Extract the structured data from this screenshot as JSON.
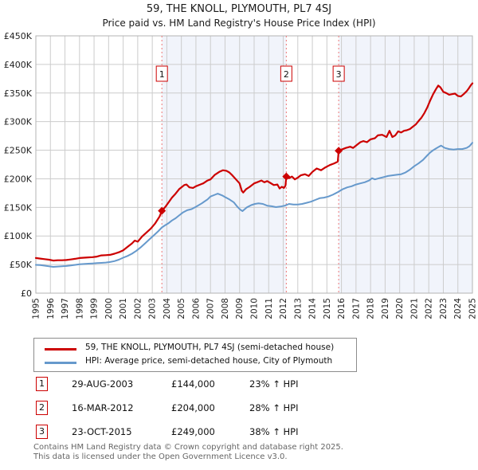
{
  "title": "59, THE KNOLL, PLYMOUTH, PL7 4SJ",
  "subtitle": "Price paid vs. HM Land Registry's House Price Index (HPI)",
  "chart_data": {
    "type": "line",
    "unit": "GBP_thousands",
    "x_range": [
      1995,
      2025
    ],
    "y_range": [
      0,
      450
    ],
    "grid": true,
    "region_fill": "#f1f4fb",
    "grid_color": "#cccccc",
    "border_color": "#b3b3b3",
    "sale_line_color": "#ee7777",
    "y_ticks": [
      {
        "value": 450,
        "label": "£450K"
      },
      {
        "value": 400,
        "label": "£400K"
      },
      {
        "value": 350,
        "label": "£350K"
      },
      {
        "value": 300,
        "label": "£300K"
      },
      {
        "value": 250,
        "label": "£250K"
      },
      {
        "value": 200,
        "label": "£200K"
      },
      {
        "value": 150,
        "label": "£150K"
      },
      {
        "value": 100,
        "label": "£100K"
      },
      {
        "value": 50,
        "label": "£50K"
      },
      {
        "value": 0,
        "label": "£0"
      }
    ],
    "x_ticks": [
      1995,
      1996,
      1997,
      1998,
      1999,
      2000,
      2001,
      2002,
      2003,
      2004,
      2005,
      2006,
      2007,
      2008,
      2009,
      2010,
      2011,
      2012,
      2013,
      2014,
      2015,
      2016,
      2017,
      2018,
      2019,
      2020,
      2021,
      2022,
      2023,
      2024,
      2025
    ],
    "shaded_regions": [
      [
        2003.66,
        2012.21
      ],
      [
        2015.81,
        2025
      ]
    ],
    "sales": [
      {
        "label": "1",
        "x": 2003.66,
        "price_k": 144
      },
      {
        "label": "2",
        "x": 2012.21,
        "price_k": 204
      },
      {
        "label": "3",
        "x": 2015.81,
        "price_k": 249
      }
    ],
    "series": [
      {
        "name": "59, THE KNOLL, PLYMOUTH, PL7 4SJ (semi-detached house)",
        "color": "#cc0000",
        "width": 2.2,
        "points": [
          [
            1995.0,
            61.5
          ],
          [
            1995.3,
            60.5
          ],
          [
            1995.6,
            59.5
          ],
          [
            1995.9,
            58.5
          ],
          [
            1996.2,
            57
          ],
          [
            1996.5,
            57.5
          ],
          [
            1996.8,
            57.5
          ],
          [
            1997.1,
            58
          ],
          [
            1997.4,
            59
          ],
          [
            1997.7,
            60
          ],
          [
            1998.0,
            61.5
          ],
          [
            1998.3,
            62
          ],
          [
            1998.6,
            62.5
          ],
          [
            1998.9,
            63
          ],
          [
            1999.2,
            64
          ],
          [
            1999.5,
            66
          ],
          [
            1999.8,
            66.5
          ],
          [
            2000.1,
            67
          ],
          [
            2000.4,
            69
          ],
          [
            2000.7,
            71.5
          ],
          [
            2001.0,
            75
          ],
          [
            2001.3,
            81
          ],
          [
            2001.6,
            87
          ],
          [
            2001.8,
            92
          ],
          [
            2002.0,
            90
          ],
          [
            2002.3,
            99
          ],
          [
            2002.6,
            106
          ],
          [
            2002.9,
            113
          ],
          [
            2003.2,
            122
          ],
          [
            2003.5,
            134
          ],
          [
            2003.66,
            144
          ],
          [
            2003.9,
            151
          ],
          [
            2004.1,
            158
          ],
          [
            2004.35,
            167
          ],
          [
            2004.6,
            174
          ],
          [
            2004.85,
            182
          ],
          [
            2005.05,
            186
          ],
          [
            2005.2,
            189
          ],
          [
            2005.35,
            190
          ],
          [
            2005.55,
            185
          ],
          [
            2005.8,
            184
          ],
          [
            2006.0,
            187
          ],
          [
            2006.3,
            190
          ],
          [
            2006.5,
            192
          ],
          [
            2006.8,
            197
          ],
          [
            2007.0,
            199
          ],
          [
            2007.3,
            207
          ],
          [
            2007.6,
            212
          ],
          [
            2007.85,
            215
          ],
          [
            2008.1,
            214
          ],
          [
            2008.3,
            211
          ],
          [
            2008.5,
            206
          ],
          [
            2008.75,
            199
          ],
          [
            2009.0,
            192
          ],
          [
            2009.15,
            179
          ],
          [
            2009.25,
            176
          ],
          [
            2009.45,
            182
          ],
          [
            2009.7,
            186
          ],
          [
            2010.0,
            192
          ],
          [
            2010.2,
            194
          ],
          [
            2010.5,
            197
          ],
          [
            2010.7,
            194
          ],
          [
            2010.9,
            196
          ],
          [
            2011.1,
            193
          ],
          [
            2011.35,
            189
          ],
          [
            2011.6,
            190
          ],
          [
            2011.75,
            183
          ],
          [
            2011.9,
            186
          ],
          [
            2012.05,
            184
          ],
          [
            2012.15,
            188
          ],
          [
            2012.21,
            204
          ],
          [
            2012.4,
            201
          ],
          [
            2012.6,
            204
          ],
          [
            2012.8,
            199
          ],
          [
            2013.0,
            202
          ],
          [
            2013.2,
            206
          ],
          [
            2013.5,
            208
          ],
          [
            2013.75,
            205
          ],
          [
            2014.0,
            212
          ],
          [
            2014.3,
            218
          ],
          [
            2014.6,
            215
          ],
          [
            2014.9,
            220
          ],
          [
            2015.2,
            224
          ],
          [
            2015.5,
            227
          ],
          [
            2015.75,
            230
          ],
          [
            2015.81,
            249
          ],
          [
            2016.0,
            251
          ],
          [
            2016.3,
            254
          ],
          [
            2016.6,
            256
          ],
          [
            2016.8,
            254
          ],
          [
            2017.0,
            258
          ],
          [
            2017.3,
            264
          ],
          [
            2017.5,
            266
          ],
          [
            2017.75,
            264
          ],
          [
            2018.0,
            269
          ],
          [
            2018.3,
            271
          ],
          [
            2018.5,
            276
          ],
          [
            2018.8,
            277
          ],
          [
            2019.1,
            273
          ],
          [
            2019.3,
            284
          ],
          [
            2019.5,
            273
          ],
          [
            2019.7,
            276
          ],
          [
            2019.9,
            283
          ],
          [
            2020.1,
            281
          ],
          [
            2020.3,
            284
          ],
          [
            2020.5,
            285
          ],
          [
            2020.7,
            287
          ],
          [
            2020.9,
            291
          ],
          [
            2021.1,
            295
          ],
          [
            2021.3,
            301
          ],
          [
            2021.5,
            307
          ],
          [
            2021.7,
            315
          ],
          [
            2021.9,
            325
          ],
          [
            2022.1,
            337
          ],
          [
            2022.3,
            348
          ],
          [
            2022.5,
            357
          ],
          [
            2022.65,
            363
          ],
          [
            2022.8,
            360
          ],
          [
            2023.0,
            352
          ],
          [
            2023.2,
            350
          ],
          [
            2023.4,
            347
          ],
          [
            2023.6,
            348
          ],
          [
            2023.8,
            349
          ],
          [
            2024.0,
            345
          ],
          [
            2024.2,
            344
          ],
          [
            2024.4,
            348
          ],
          [
            2024.6,
            353
          ],
          [
            2024.75,
            358
          ],
          [
            2024.9,
            364
          ],
          [
            2025.0,
            367
          ]
        ]
      },
      {
        "name": "HPI: Average price, semi-detached house, City of Plymouth",
        "color": "#6699cc",
        "width": 2,
        "points": [
          [
            1995.0,
            49.5
          ],
          [
            1995.3,
            49
          ],
          [
            1995.6,
            48
          ],
          [
            1995.9,
            47
          ],
          [
            1996.2,
            46
          ],
          [
            1996.5,
            46.5
          ],
          [
            1996.8,
            47
          ],
          [
            1997.1,
            47.5
          ],
          [
            1997.4,
            48.5
          ],
          [
            1997.7,
            49.5
          ],
          [
            1998.0,
            50.5
          ],
          [
            1998.3,
            51
          ],
          [
            1998.6,
            51.5
          ],
          [
            1998.9,
            52
          ],
          [
            1999.2,
            52.5
          ],
          [
            1999.5,
            53
          ],
          [
            1999.8,
            53.5
          ],
          [
            2000.1,
            54.5
          ],
          [
            2000.4,
            56
          ],
          [
            2000.7,
            58.5
          ],
          [
            2001.0,
            62
          ],
          [
            2001.3,
            65
          ],
          [
            2001.6,
            69
          ],
          [
            2001.9,
            74
          ],
          [
            2002.2,
            80
          ],
          [
            2002.5,
            87
          ],
          [
            2002.8,
            94
          ],
          [
            2003.1,
            101
          ],
          [
            2003.4,
            108
          ],
          [
            2003.66,
            115
          ],
          [
            2003.9,
            119
          ],
          [
            2004.1,
            122
          ],
          [
            2004.35,
            127
          ],
          [
            2004.6,
            131
          ],
          [
            2004.85,
            136
          ],
          [
            2005.1,
            141
          ],
          [
            2005.4,
            145
          ],
          [
            2005.7,
            147
          ],
          [
            2006.0,
            151
          ],
          [
            2006.4,
            157
          ],
          [
            2006.8,
            164
          ],
          [
            2007.0,
            169
          ],
          [
            2007.3,
            172
          ],
          [
            2007.5,
            174
          ],
          [
            2007.8,
            171
          ],
          [
            2008.0,
            168
          ],
          [
            2008.3,
            164
          ],
          [
            2008.6,
            159
          ],
          [
            2008.85,
            151
          ],
          [
            2009.05,
            146
          ],
          [
            2009.2,
            143.5
          ],
          [
            2009.5,
            150
          ],
          [
            2009.8,
            154
          ],
          [
            2010.05,
            156
          ],
          [
            2010.3,
            157
          ],
          [
            2010.6,
            156
          ],
          [
            2010.9,
            153
          ],
          [
            2011.2,
            152
          ],
          [
            2011.5,
            150.5
          ],
          [
            2011.8,
            151.5
          ],
          [
            2012.1,
            153
          ],
          [
            2012.4,
            156
          ],
          [
            2012.7,
            155
          ],
          [
            2013.0,
            155
          ],
          [
            2013.3,
            156
          ],
          [
            2013.6,
            158
          ],
          [
            2013.9,
            160
          ],
          [
            2014.2,
            163
          ],
          [
            2014.5,
            166
          ],
          [
            2014.8,
            167
          ],
          [
            2015.1,
            169
          ],
          [
            2015.4,
            172
          ],
          [
            2015.7,
            176
          ],
          [
            2015.9,
            179
          ],
          [
            2016.1,
            182
          ],
          [
            2016.4,
            185
          ],
          [
            2016.7,
            187
          ],
          [
            2017.0,
            190
          ],
          [
            2017.3,
            192
          ],
          [
            2017.6,
            194
          ],
          [
            2017.9,
            197
          ],
          [
            2018.1,
            201
          ],
          [
            2018.3,
            199
          ],
          [
            2018.6,
            201
          ],
          [
            2018.9,
            203
          ],
          [
            2019.2,
            205
          ],
          [
            2019.5,
            206
          ],
          [
            2019.8,
            207
          ],
          [
            2020.1,
            208
          ],
          [
            2020.4,
            211
          ],
          [
            2020.7,
            216
          ],
          [
            2021.0,
            222
          ],
          [
            2021.3,
            227
          ],
          [
            2021.6,
            233
          ],
          [
            2021.9,
            241
          ],
          [
            2022.1,
            246
          ],
          [
            2022.3,
            250
          ],
          [
            2022.5,
            253
          ],
          [
            2022.7,
            256
          ],
          [
            2022.85,
            258
          ],
          [
            2023.1,
            254
          ],
          [
            2023.4,
            252
          ],
          [
            2023.7,
            251
          ],
          [
            2024.0,
            252
          ],
          [
            2024.3,
            252
          ],
          [
            2024.6,
            254
          ],
          [
            2024.8,
            257
          ],
          [
            2025.0,
            263
          ]
        ]
      }
    ]
  },
  "legend": {
    "entries": [
      {
        "label": "59, THE KNOLL, PLYMOUTH, PL7 4SJ (semi-detached house)",
        "color": "#cc0000"
      },
      {
        "label": "HPI: Average price, semi-detached house, City of Plymouth",
        "color": "#6699cc"
      }
    ]
  },
  "table": {
    "rows": [
      {
        "marker": "1",
        "date": "29-AUG-2003",
        "price": "£144,000",
        "hpi": "23% ↑ HPI"
      },
      {
        "marker": "2",
        "date": "16-MAR-2012",
        "price": "£204,000",
        "hpi": "28% ↑ HPI"
      },
      {
        "marker": "3",
        "date": "23-OCT-2015",
        "price": "£249,000",
        "hpi": "38% ↑ HPI"
      }
    ]
  },
  "footer": {
    "line1": "Contains HM Land Registry data © Crown copyright and database right 2025.",
    "line2": "This data is licensed under the Open Government Licence v3.0."
  }
}
